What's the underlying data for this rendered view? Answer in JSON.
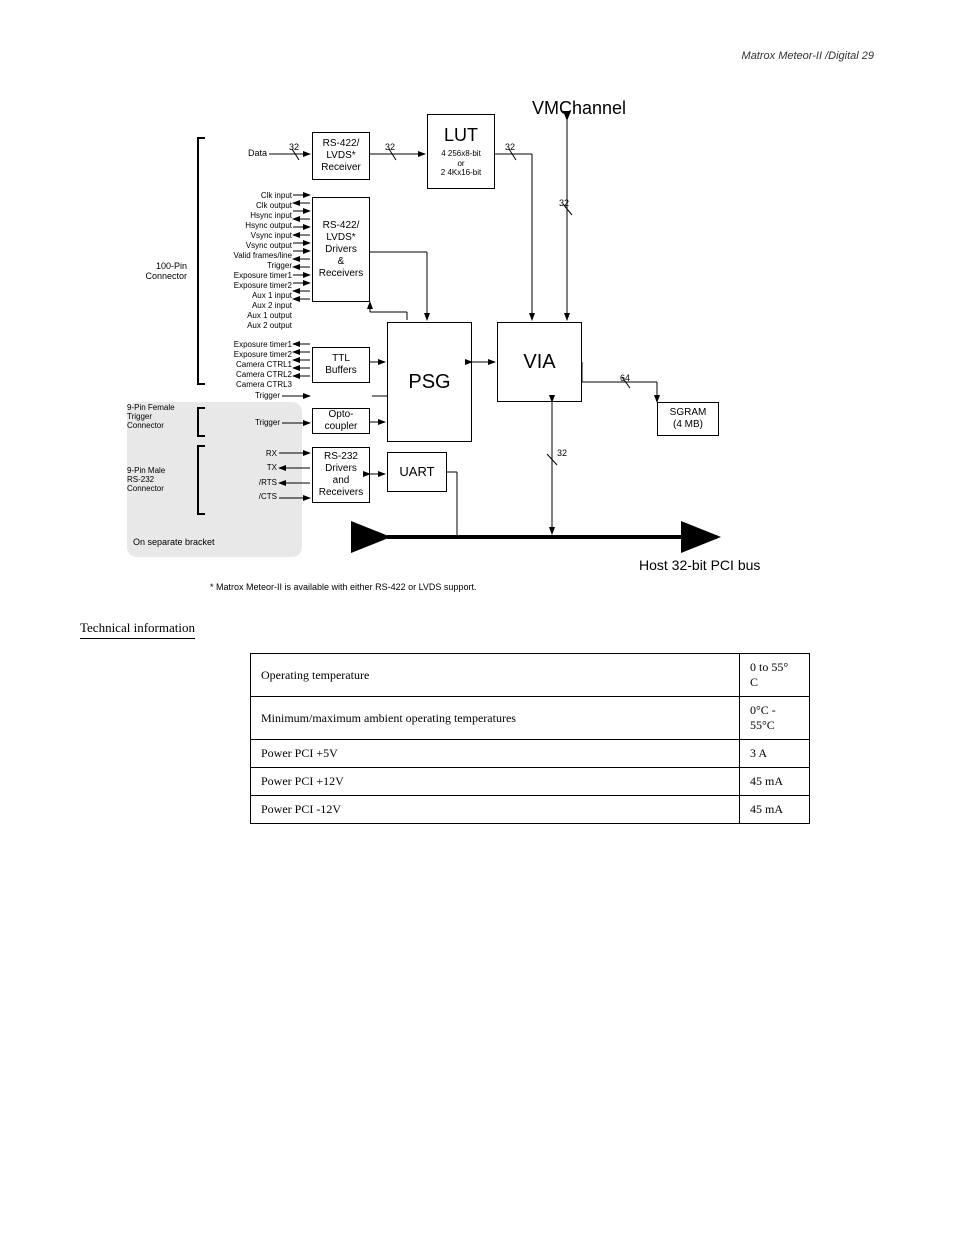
{
  "page_header": "Matrox Meteor-II /Digital      29",
  "section_title": "Technical information",
  "footnote": "* Matrox Meteor-II is available with either RS-422 or LVDS support.",
  "host_bus_label": "Host 32-bit PCI bus",
  "vm_label": "VMChannel",
  "boxes": {
    "lut": {
      "title": "LUT",
      "sub1": "4 256x8-bit",
      "sub2": "or",
      "sub3": "2 4Kx16-bit"
    },
    "psg": "PSG",
    "via": "VIA",
    "uart": "UART",
    "rs422_recv": {
      "l1": "RS-422/",
      "l2": "LVDS*",
      "l3": "Receiver"
    },
    "rs422_drv": {
      "l1": "RS-422/",
      "l2": "LVDS*",
      "l3": "Drivers",
      "l4": "&",
      "l5": "Receivers"
    },
    "ttl": {
      "l1": "TTL",
      "l2": "Buffers"
    },
    "opto": {
      "l1": "Opto-",
      "l2": "coupler"
    },
    "rs232": {
      "l1": "RS-232",
      "l2": "Drivers",
      "l3": "and",
      "l4": "Receivers"
    },
    "sgram": {
      "l1": "SGRAM",
      "l2": "(4 MB)"
    }
  },
  "connectors": {
    "c100": "100-Pin\nConnector",
    "c9f": "9-Pin Female\nTrigger\nConnector",
    "c9m": "9-Pin Male\nRS-232\nConnector",
    "sep": "On separate bracket"
  },
  "signals": {
    "data": "Data",
    "group1": [
      "Clk input",
      "Clk output",
      "Hsync input",
      "Hsync output",
      "Vsync input",
      "Vsync output",
      "Valid frames/line",
      "Trigger",
      "Exposure timer1",
      "Exposure timer2",
      "Aux 1 input",
      "Aux 2 input",
      "Aux 1 output",
      "Aux 2 output"
    ],
    "group2": [
      "Exposure timer1",
      "Exposure timer2",
      "Camera CTRL1",
      "Camera CTRL2",
      "Camera CTRL3"
    ],
    "trigger1": "Trigger",
    "trigger2": "Trigger",
    "uart": [
      "RX",
      "TX",
      "/RTS",
      "/CTS"
    ]
  },
  "bus_nums": {
    "n32a": "32",
    "n32b": "32",
    "n32c": "32",
    "n32d": "32",
    "n32e": "32",
    "n64": "64"
  },
  "table": {
    "rows": [
      [
        "Operating temperature",
        "0 to 55° C"
      ],
      [
        "Minimum/maximum ambient operating temperatures",
        "0°C - 55°C"
      ],
      [
        "Power PCI +5V",
        "3 A"
      ],
      [
        "Power PCI +12V",
        "45 mA"
      ],
      [
        "Power PCI -12V",
        "45 mA"
      ]
    ]
  }
}
